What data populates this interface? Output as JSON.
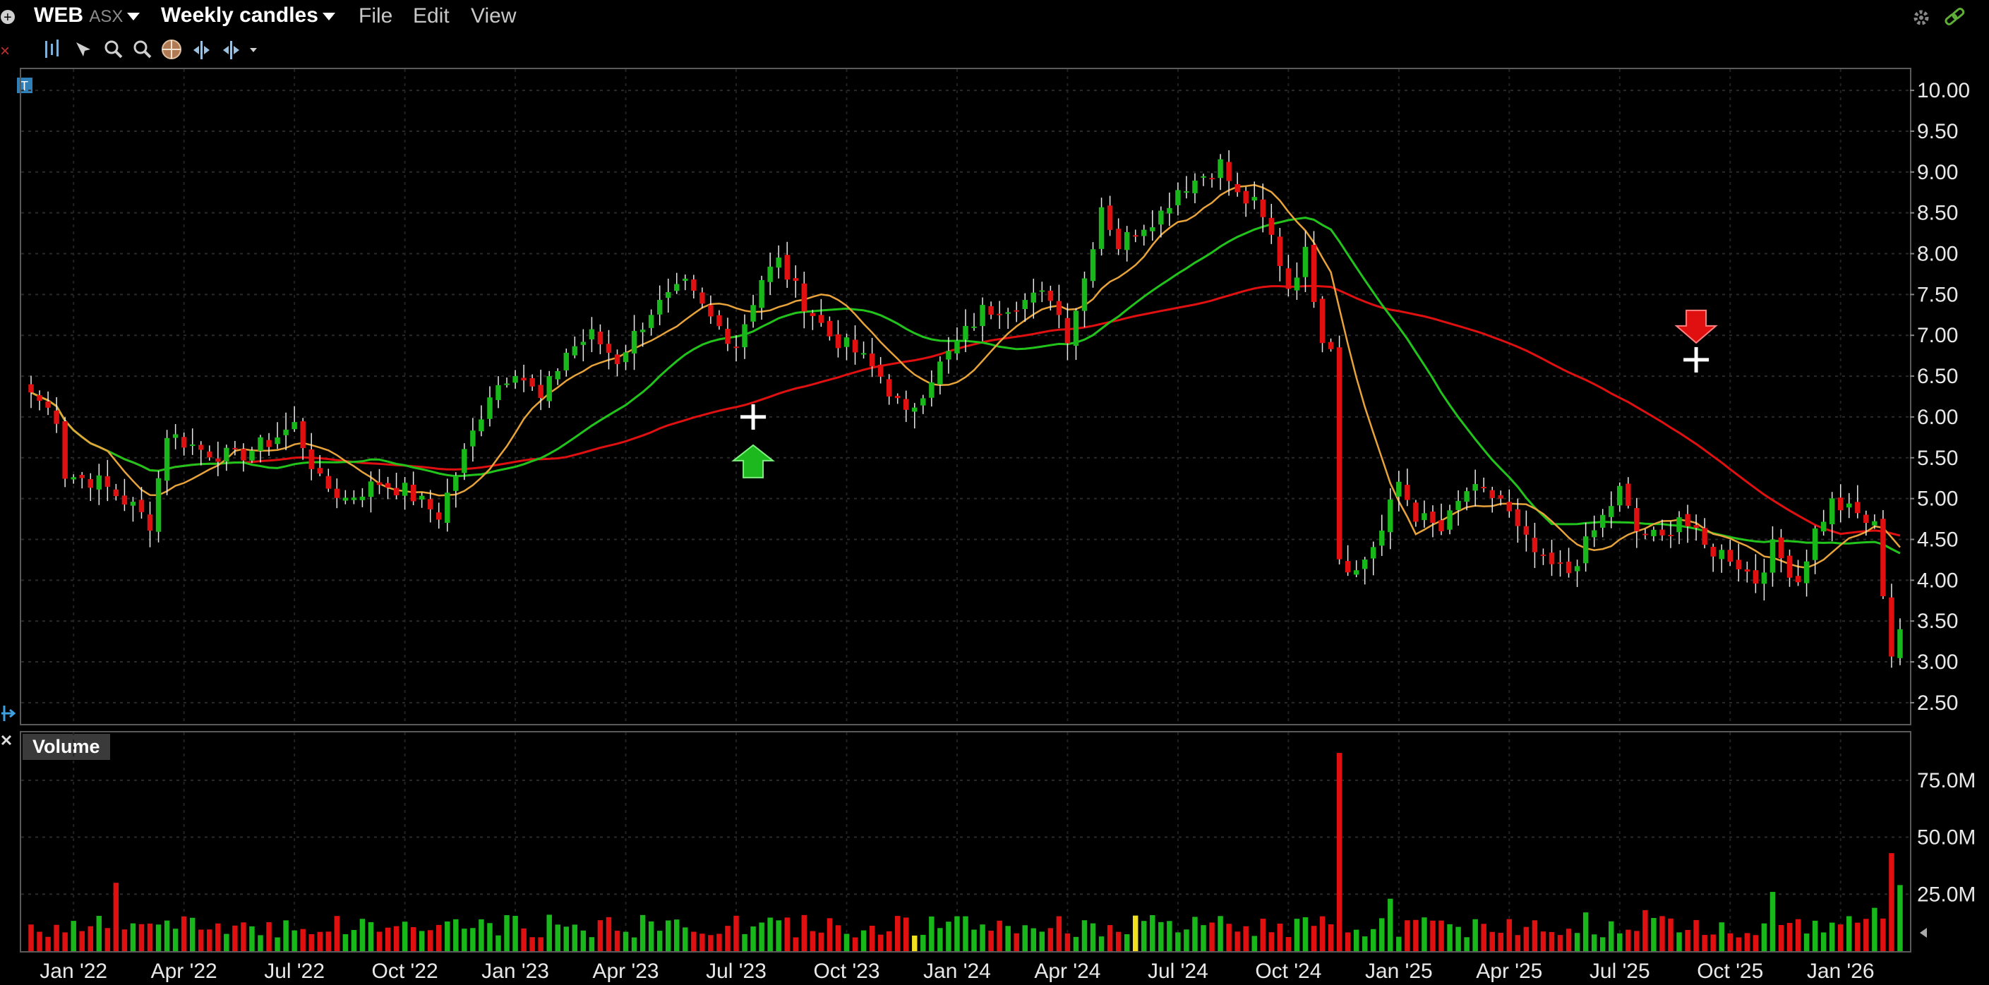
{
  "header": {
    "symbol": "WEB",
    "exchange": "ASX",
    "chart_mode": "Weekly candles",
    "menu": [
      "File",
      "Edit",
      "View"
    ]
  },
  "toolbar": {
    "icons": [
      "text-tool-icon",
      "bar-style-icon",
      "crosshair-tool-icon",
      "zoom-in-icon",
      "zoom-out-icon",
      "world-icon",
      "split-icon",
      "expand-icon"
    ]
  },
  "volume_panel": {
    "label": "Volume"
  },
  "chart_data": {
    "type": "candlestick",
    "price_axis": {
      "ticks": [
        "10.00",
        "9.50",
        "9.00",
        "8.50",
        "8.00",
        "7.50",
        "7.00",
        "6.50",
        "6.00",
        "5.50",
        "5.00",
        "4.50",
        "4.00",
        "3.50",
        "3.00",
        "2.50"
      ],
      "range": [
        2.24,
        10.26
      ]
    },
    "volume_axis": {
      "ticks": [
        "75.0M",
        "50.0M",
        "25.0M"
      ],
      "range": [
        0,
        96
      ]
    },
    "x_labels": [
      "Jan '22",
      "Apr '22",
      "Jul '22",
      "Oct '22",
      "Jan '23",
      "Apr '23",
      "Jul '23",
      "Oct '23",
      "Jan '24",
      "Apr '24",
      "Jul '24",
      "Oct '24",
      "Jan '25",
      "Apr '25",
      "Jul '25",
      "Oct '25",
      "Jan '26"
    ],
    "close_anchors": [
      [
        0,
        6.3
      ],
      [
        3,
        6.0
      ],
      [
        4,
        5.3
      ],
      [
        8,
        5.2
      ],
      [
        12,
        4.9
      ],
      [
        14,
        4.7
      ],
      [
        16,
        5.8
      ],
      [
        20,
        5.6
      ],
      [
        24,
        5.5
      ],
      [
        28,
        5.7
      ],
      [
        31,
        5.9
      ],
      [
        34,
        5.2
      ],
      [
        37,
        5.0
      ],
      [
        41,
        5.2
      ],
      [
        44,
        5.1
      ],
      [
        48,
        4.8
      ],
      [
        50,
        5.3
      ],
      [
        54,
        6.3
      ],
      [
        57,
        6.6
      ],
      [
        60,
        6.2
      ],
      [
        63,
        6.8
      ],
      [
        66,
        7.0
      ],
      [
        69,
        6.7
      ],
      [
        73,
        7.3
      ],
      [
        77,
        7.6
      ],
      [
        80,
        7.2
      ],
      [
        83,
        6.9
      ],
      [
        86,
        7.7
      ],
      [
        88,
        7.9
      ],
      [
        91,
        7.4
      ],
      [
        94,
        7.0
      ],
      [
        97,
        6.8
      ],
      [
        100,
        6.5
      ],
      [
        103,
        6.0
      ],
      [
        106,
        6.5
      ],
      [
        109,
        6.9
      ],
      [
        112,
        7.3
      ],
      [
        116,
        7.4
      ],
      [
        120,
        7.5
      ],
      [
        122,
        7.0
      ],
      [
        124,
        7.7
      ],
      [
        126,
        8.6
      ],
      [
        128,
        8.1
      ],
      [
        130,
        8.3
      ],
      [
        133,
        8.5
      ],
      [
        135,
        8.8
      ],
      [
        137,
        8.9
      ],
      [
        140,
        9.1
      ],
      [
        142,
        8.7
      ],
      [
        144,
        8.6
      ],
      [
        146,
        8.2
      ],
      [
        148,
        7.6
      ],
      [
        150,
        8.0
      ],
      [
        152,
        7.0
      ],
      [
        153,
        6.9
      ],
      [
        154,
        4.3
      ],
      [
        156,
        4.1
      ],
      [
        159,
        4.6
      ],
      [
        161,
        5.2
      ],
      [
        163,
        4.8
      ],
      [
        166,
        4.6
      ],
      [
        169,
        5.1
      ],
      [
        173,
        5.0
      ],
      [
        175,
        4.6
      ],
      [
        178,
        4.2
      ],
      [
        181,
        4.1
      ],
      [
        184,
        4.6
      ],
      [
        187,
        5.1
      ],
      [
        189,
        4.6
      ],
      [
        192,
        4.5
      ],
      [
        194,
        4.8
      ],
      [
        197,
        4.4
      ],
      [
        200,
        4.3
      ],
      [
        203,
        4.0
      ],
      [
        205,
        4.4
      ],
      [
        208,
        4.0
      ],
      [
        210,
        4.6
      ],
      [
        212,
        4.95
      ],
      [
        215,
        4.8
      ],
      [
        217,
        4.65
      ],
      [
        219,
        3.1
      ],
      [
        220,
        3.4
      ]
    ],
    "volume_spikes": {
      "154": 87,
      "219": 43,
      "220": 29,
      "10": 30,
      "160": 23,
      "183": 17,
      "190": 18,
      "205": 26,
      "217": 19
    },
    "highlight_volume_bars": [
      104,
      130
    ],
    "sma_fast_color": "#e8a33a",
    "sma_mid_color": "#22c41c",
    "sma_slow_color": "#e01010",
    "bull_color": "#19b81a",
    "bear_color": "#e01010",
    "signals": [
      {
        "type": "buy",
        "bar": 85,
        "price": 6.0
      },
      {
        "type": "sell",
        "bar": 196,
        "price": 6.7
      }
    ]
  }
}
